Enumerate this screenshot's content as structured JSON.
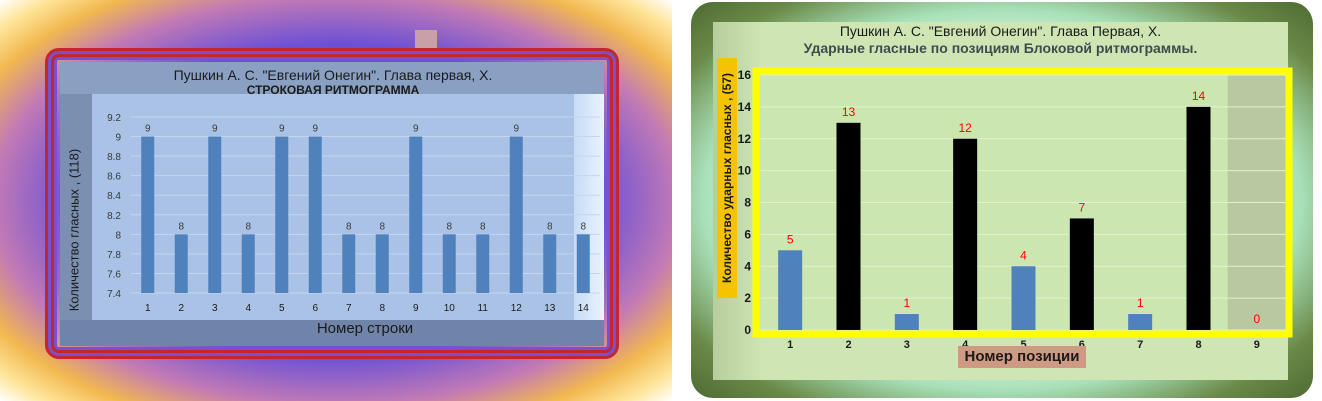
{
  "chart_data": [
    {
      "type": "bar",
      "title": "Пушкин  А. С. \"Евгений Онегин\". Глава первая, Х.",
      "subtitle": "СТРОКОВАЯ  РИТМОГРАММА",
      "xlabel": "Номер строки",
      "ylabel": "Количество гласных , (118)",
      "categories": [
        "1",
        "2",
        "3",
        "4",
        "5",
        "6",
        "7",
        "8",
        "9",
        "10",
        "11",
        "12",
        "13",
        "14"
      ],
      "values": [
        9,
        8,
        9,
        8,
        9,
        9,
        8,
        8,
        9,
        8,
        8,
        9,
        8,
        8
      ],
      "ylim": [
        7.4,
        9.2
      ],
      "yticks": [
        "9.2",
        "9",
        "8.8",
        "8.6",
        "8.4",
        "8.2",
        "8",
        "7.8",
        "7.6",
        "7.4"
      ],
      "grid": true,
      "colors": {
        "bar": "#4f81bd",
        "plot_bg": "#a9c2e6",
        "label": "#3a3a3a"
      }
    },
    {
      "type": "bar",
      "title": "Пушкин  А. С. \"Евгений Онегин\".  Глава Первая, Х.",
      "subtitle": "Ударные гласные по позициям Блоковой ритмограммы.",
      "xlabel": "Номер позиции",
      "ylabel": "Количество ударных  гласных , (57)",
      "categories": [
        "1",
        "2",
        "3",
        "4",
        "5",
        "6",
        "7",
        "8",
        "9"
      ],
      "values": [
        5,
        13,
        1,
        12,
        4,
        7,
        1,
        14,
        0
      ],
      "ylim": [
        0,
        16
      ],
      "yticks": [
        "16",
        "14",
        "12",
        "10",
        "8",
        "6",
        "4",
        "2",
        "0"
      ],
      "grid": true,
      "colors": {
        "odd_bar": "#4f81bd",
        "even_bar": "#000000",
        "plot_border": "#ffff00",
        "label": "#ff0000"
      }
    }
  ]
}
